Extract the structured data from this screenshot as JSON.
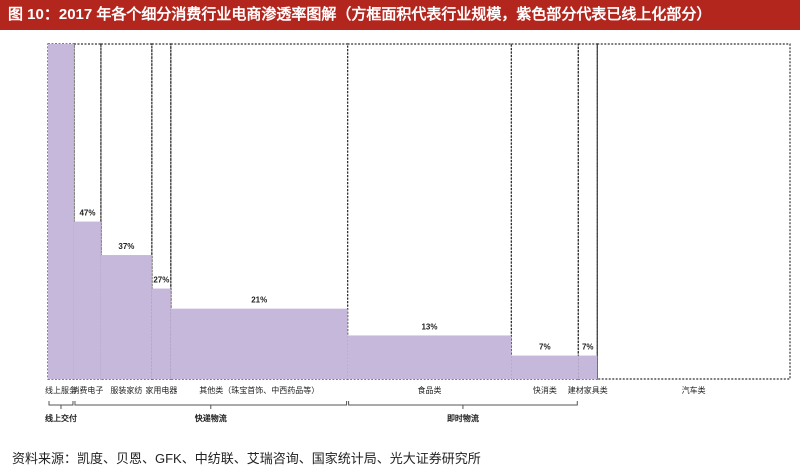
{
  "title": "图 10：2017 年各个细分消费行业电商渗透率图解（方框面积代表行业规模，紫色部分代表已线上化部分）",
  "source": "资料来源：凯度、贝恩、GFK、中纺联、艾瑞咨询、国家统计局、光大证券研究所",
  "colors": {
    "filled": "#c6b8da",
    "border": "#333333",
    "title_bg": "#b3261e"
  },
  "chart_data": {
    "type": "marimekko",
    "title": "",
    "categories": [
      "线上服务",
      "消费电子",
      "服装家纺",
      "家用电器",
      "其他类（珠宝首饰、中西药品等）",
      "食品类",
      "快消类",
      "建材家具类",
      "汽车类"
    ],
    "values": [
      100,
      47,
      37,
      27,
      21,
      13,
      7,
      7,
      null
    ],
    "value_labels": [
      "",
      "47%",
      "37%",
      "27%",
      "21%",
      "13%",
      "7%",
      "7%",
      ""
    ],
    "relative_widths": [
      26,
      27,
      51,
      19,
      177,
      164,
      67,
      19,
      193
    ],
    "ylim": [
      0,
      100
    ],
    "groups": [
      {
        "label": "线上交付",
        "from": 0,
        "to": 0
      },
      {
        "label": "快递物流",
        "from": 1,
        "to": 4
      },
      {
        "label": "即时物流",
        "from": 5,
        "to": 6
      }
    ]
  }
}
